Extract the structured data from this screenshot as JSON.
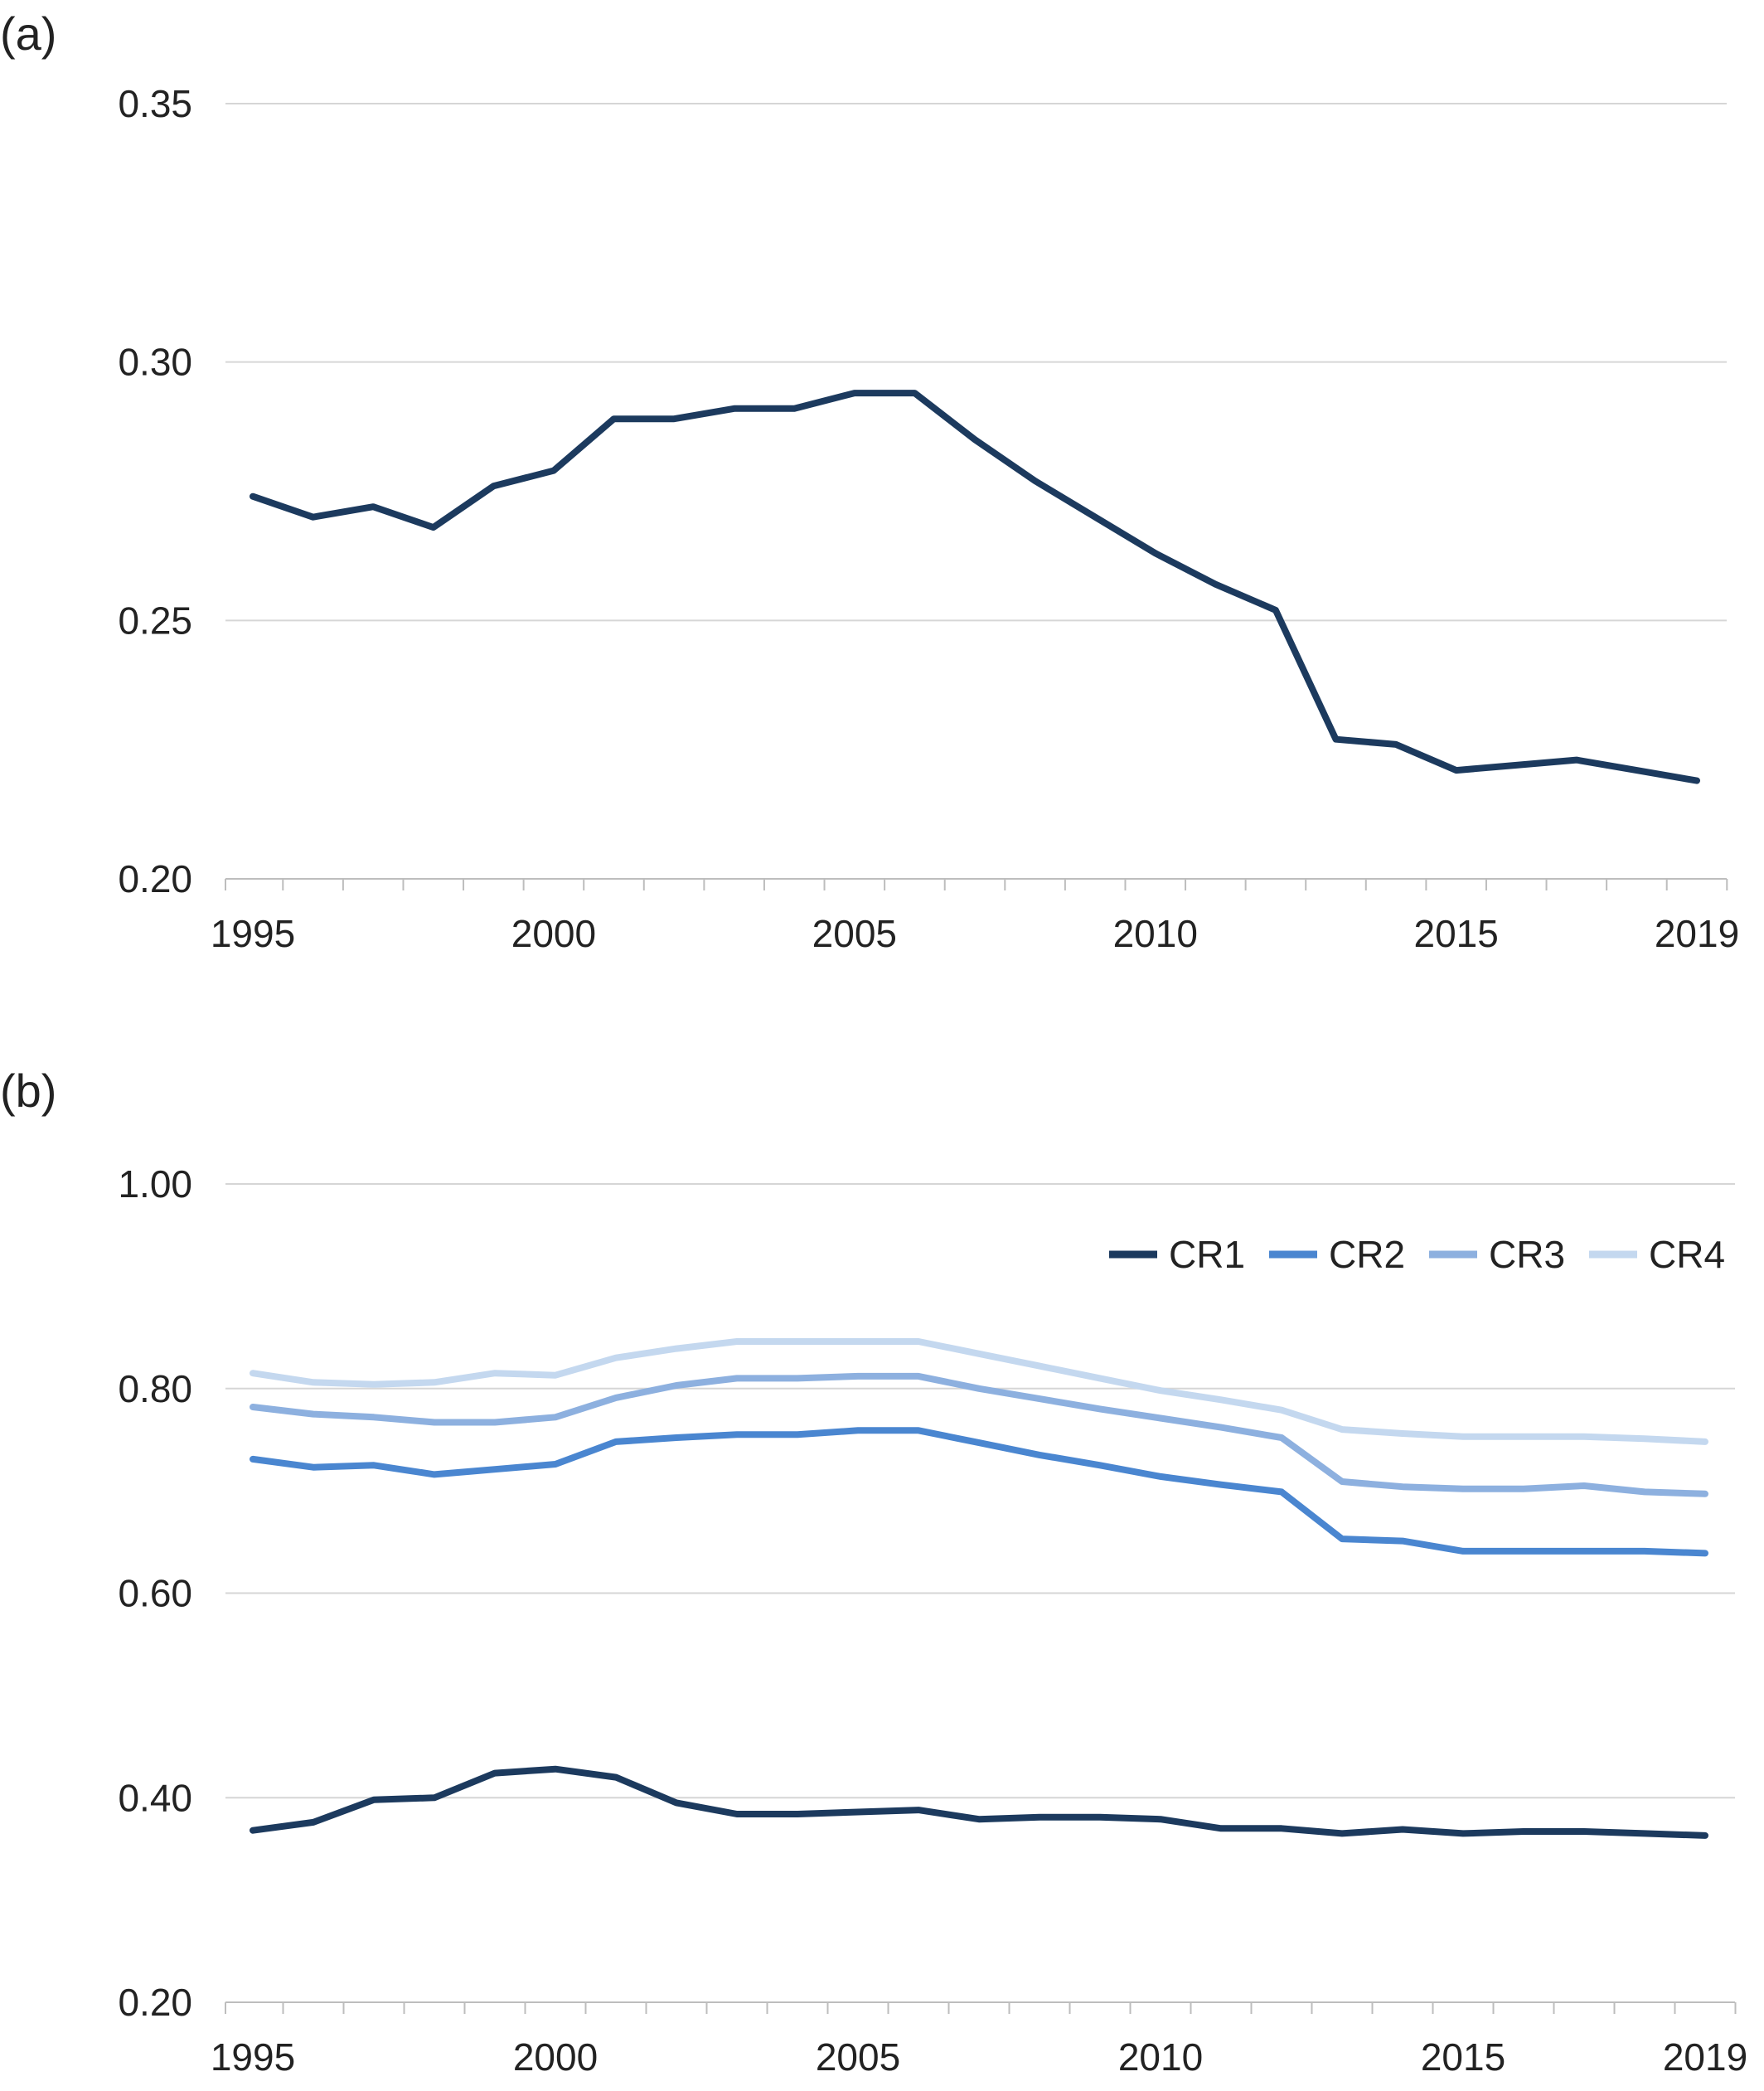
{
  "chart_data": [
    {
      "panel_label": "(a)",
      "type": "line",
      "x": [
        1995,
        1996,
        1997,
        1998,
        1999,
        2000,
        2001,
        2002,
        2003,
        2004,
        2005,
        2006,
        2007,
        2008,
        2009,
        2010,
        2011,
        2012,
        2013,
        2014,
        2015,
        2016,
        2017,
        2018,
        2019
      ],
      "xticks": [
        "1995",
        "2000",
        "2005",
        "2010",
        "2015",
        "2019"
      ],
      "ylim": [
        0.2,
        0.35
      ],
      "yticks": [
        "0.20",
        "0.25",
        "0.30",
        "0.35"
      ],
      "grid": true,
      "legend": null,
      "series": [
        {
          "color": "#1c3a5e",
          "values": [
            0.274,
            0.27,
            0.272,
            0.268,
            0.276,
            0.279,
            0.289,
            0.289,
            0.291,
            0.291,
            0.294,
            0.294,
            0.285,
            0.277,
            0.27,
            0.263,
            0.257,
            0.252,
            0.227,
            0.226,
            0.221,
            0.222,
            0.223,
            0.221,
            0.219
          ]
        }
      ]
    },
    {
      "panel_label": "(b)",
      "type": "line",
      "x": [
        1995,
        1996,
        1997,
        1998,
        1999,
        2000,
        2001,
        2002,
        2003,
        2004,
        2005,
        2006,
        2007,
        2008,
        2009,
        2010,
        2011,
        2012,
        2013,
        2014,
        2015,
        2016,
        2017,
        2018,
        2019
      ],
      "xticks": [
        "1995",
        "2000",
        "2005",
        "2010",
        "2015",
        "2019"
      ],
      "ylim": [
        0.2,
        1.0
      ],
      "yticks": [
        "0.20",
        "0.40",
        "0.60",
        "0.80",
        "1.00"
      ],
      "grid": true,
      "legend": "top-right",
      "series": [
        {
          "name": "CR1",
          "color": "#1c3a5e",
          "values": [
            0.368,
            0.376,
            0.398,
            0.4,
            0.424,
            0.428,
            0.42,
            0.395,
            0.384,
            0.384,
            0.386,
            0.388,
            0.379,
            0.381,
            0.381,
            0.379,
            0.37,
            0.37,
            0.365,
            0.369,
            0.365,
            0.367,
            0.367,
            0.365,
            0.363
          ]
        },
        {
          "name": "CR2",
          "color": "#4a86d0",
          "values": [
            0.731,
            0.723,
            0.725,
            0.716,
            0.721,
            0.726,
            0.748,
            0.752,
            0.755,
            0.755,
            0.759,
            0.759,
            0.747,
            0.735,
            0.725,
            0.714,
            0.706,
            0.699,
            0.653,
            0.651,
            0.641,
            0.641,
            0.641,
            0.641,
            0.639
          ]
        },
        {
          "name": "CR3",
          "color": "#8db0df",
          "values": [
            0.782,
            0.775,
            0.772,
            0.767,
            0.767,
            0.772,
            0.791,
            0.803,
            0.81,
            0.81,
            0.812,
            0.812,
            0.8,
            0.79,
            0.78,
            0.771,
            0.762,
            0.752,
            0.709,
            0.704,
            0.702,
            0.702,
            0.705,
            0.699,
            0.697
          ]
        },
        {
          "name": "CR4",
          "color": "#c4d8ef",
          "values": [
            0.815,
            0.806,
            0.804,
            0.806,
            0.815,
            0.813,
            0.83,
            0.839,
            0.846,
            0.846,
            0.846,
            0.846,
            0.834,
            0.822,
            0.81,
            0.798,
            0.789,
            0.779,
            0.76,
            0.756,
            0.753,
            0.753,
            0.753,
            0.751,
            0.748
          ]
        }
      ]
    }
  ]
}
